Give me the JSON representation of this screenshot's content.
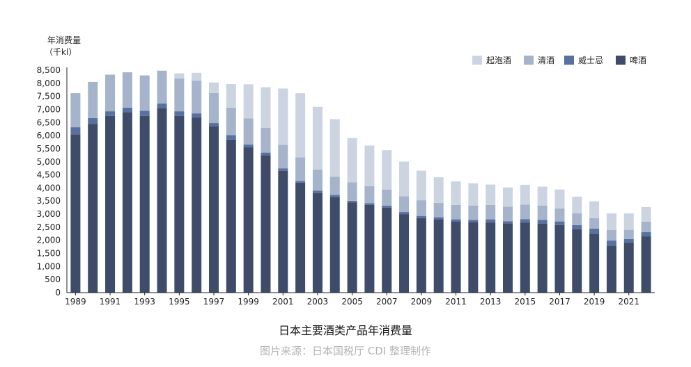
{
  "chart_data": {
    "type": "bar",
    "stacked": true,
    "title": "日本主要酒类产品年消费量",
    "source": "图片来源：日本国税厅 CDI 整理制作",
    "ylabel": "年消费量",
    "yunit": "（千kl）",
    "ylim": [
      0,
      8500
    ],
    "yticks": [
      0,
      500,
      1000,
      1500,
      2000,
      2500,
      3000,
      3500,
      4000,
      4500,
      5000,
      5500,
      6000,
      6500,
      7000,
      7500,
      8000,
      8500
    ],
    "ytick_labels": [
      "0",
      "500",
      "1,000",
      "1,500",
      "2,000",
      "2,500",
      "3,000",
      "3,500",
      "4,000",
      "4,500",
      "5,000",
      "5,500",
      "6,000",
      "6,500",
      "7,000",
      "7,500",
      "8,000",
      "8,500"
    ],
    "categories": [
      1989,
      1990,
      1991,
      1992,
      1993,
      1994,
      1995,
      1996,
      1997,
      1998,
      1999,
      2000,
      2001,
      2002,
      2003,
      2004,
      2005,
      2006,
      2007,
      2008,
      2009,
      2010,
      2011,
      2012,
      2013,
      2014,
      2015,
      2016,
      2017,
      2018,
      2019,
      2020,
      2021,
      2022
    ],
    "xtick_labels": [
      "1989",
      "1991",
      "1993",
      "1995",
      "1997",
      "1999",
      "2001",
      "2003",
      "2005",
      "2007",
      "2009",
      "2011",
      "2013",
      "2015",
      "2017",
      "2019",
      "2021"
    ],
    "legend_position": "top-right",
    "grid": false,
    "series": [
      {
        "name": "啤酒",
        "color": "#3e4c69",
        "values": [
          6050,
          6450,
          6750,
          6900,
          6750,
          7050,
          6750,
          6700,
          6350,
          5850,
          5550,
          5250,
          4650,
          4200,
          3800,
          3650,
          3450,
          3350,
          3250,
          3000,
          2850,
          2800,
          2720,
          2700,
          2680,
          2650,
          2680,
          2630,
          2580,
          2420,
          2250,
          1800,
          1900,
          2150
        ]
      },
      {
        "name": "威士忌",
        "color": "#5871a1",
        "values": [
          270,
          220,
          180,
          170,
          200,
          180,
          180,
          150,
          130,
          170,
          110,
          100,
          100,
          70,
          100,
          80,
          60,
          70,
          70,
          80,
          80,
          80,
          80,
          80,
          120,
          80,
          130,
          150,
          140,
          160,
          200,
          190,
          150,
          160
        ]
      },
      {
        "name": "清酒",
        "color": "#a5b3cb",
        "values": [
          1300,
          1380,
          1400,
          1350,
          1350,
          1250,
          1250,
          1250,
          1150,
          1050,
          1000,
          950,
          900,
          900,
          800,
          700,
          700,
          650,
          620,
          600,
          600,
          550,
          550,
          550,
          550,
          550,
          550,
          550,
          500,
          450,
          400,
          400,
          350,
          400
        ]
      },
      {
        "name": "起泡酒",
        "color": "#ccd4e1",
        "values": [
          0,
          0,
          0,
          0,
          0,
          0,
          200,
          300,
          400,
          900,
          1300,
          1550,
          2150,
          2450,
          2400,
          2200,
          1700,
          1550,
          1500,
          1330,
          1130,
          980,
          900,
          850,
          780,
          740,
          760,
          720,
          720,
          640,
          640,
          640,
          630,
          560
        ]
      }
    ]
  }
}
